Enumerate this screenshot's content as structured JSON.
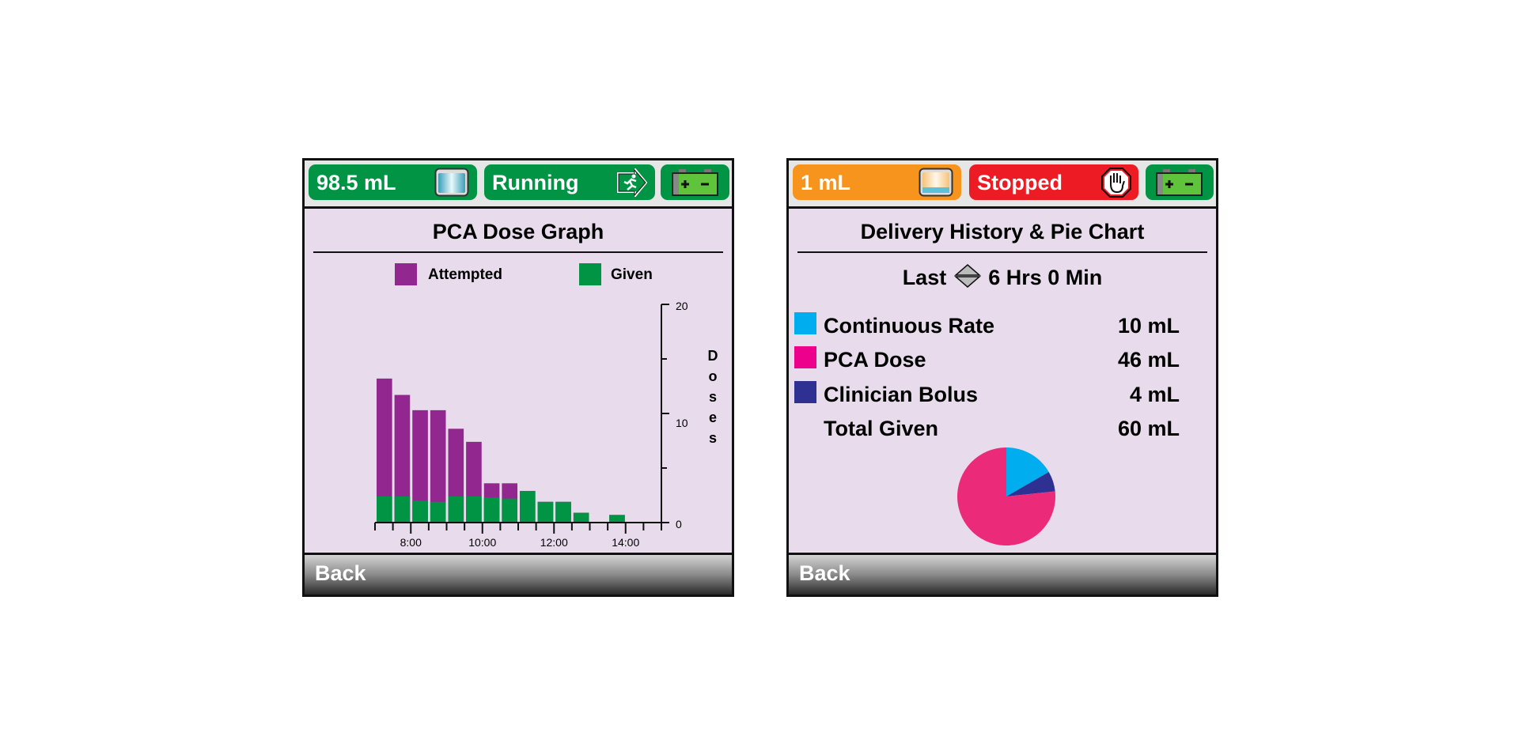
{
  "left_screen": {
    "status": {
      "volume": "98.5 mL",
      "state": "Running"
    },
    "title": "PCA Dose Graph",
    "legend": {
      "attempted": "Attempted",
      "given": "Given"
    },
    "footer": {
      "back": "Back"
    }
  },
  "right_screen": {
    "status": {
      "volume": "1 mL",
      "state": "Stopped"
    },
    "title": "Delivery History & Pie Chart",
    "period": {
      "prefix": "Last",
      "value": "6 Hrs 0 Min"
    },
    "rows": [
      {
        "label": "Continuous Rate",
        "value": "10 mL",
        "color": "#00AEEF"
      },
      {
        "label": "PCA Dose",
        "value": "46 mL",
        "color": "#EC008C"
      },
      {
        "label": "Clinician Bolus",
        "value": "4 mL",
        "color": "#2E3192"
      },
      {
        "label": "Total Given",
        "value": "60 mL"
      }
    ],
    "footer": {
      "back": "Back"
    }
  },
  "chart_data": [
    {
      "type": "bar",
      "title": "PCA Dose Graph",
      "ylabel": "Doses",
      "ylim": [
        0,
        20
      ],
      "yticks": [
        "0",
        "10",
        "20"
      ],
      "xticks": [
        "8:00",
        "10:00",
        "12:00",
        "14:00"
      ],
      "x_start": "7:00",
      "x_end": "15:00",
      "bin_minutes": 30,
      "categories": [
        "7:00",
        "7:30",
        "8:00",
        "8:30",
        "9:00",
        "9:30",
        "10:00",
        "10:30",
        "11:00",
        "11:30",
        "12:00",
        "12:30",
        "13:00",
        "13:30",
        "14:00",
        "14:30"
      ],
      "series": [
        {
          "name": "Attempted",
          "color": "#92278F",
          "values": [
            13.2,
            11.7,
            10.3,
            10.3,
            8.6,
            7.4,
            3.6,
            3.6,
            2.9,
            1.9,
            1.9,
            0.9,
            0,
            0.7,
            0,
            0
          ]
        },
        {
          "name": "Given",
          "color": "#009444",
          "values": [
            2.4,
            2.4,
            2.0,
            1.9,
            2.4,
            2.4,
            2.3,
            2.2,
            2.9,
            1.9,
            1.9,
            0.9,
            0,
            0.7,
            0,
            0
          ]
        }
      ],
      "legend": "top"
    },
    {
      "type": "pie",
      "title": "Delivery History & Pie Chart",
      "slices": [
        {
          "label": "Continuous Rate",
          "value": 10,
          "color": "#00AEEF"
        },
        {
          "label": "Clinician Bolus",
          "value": 4,
          "color": "#2E3192"
        },
        {
          "label": "PCA Dose",
          "value": 46,
          "color": "#EC2A7A"
        }
      ],
      "total": 60,
      "unit": "mL"
    }
  ]
}
